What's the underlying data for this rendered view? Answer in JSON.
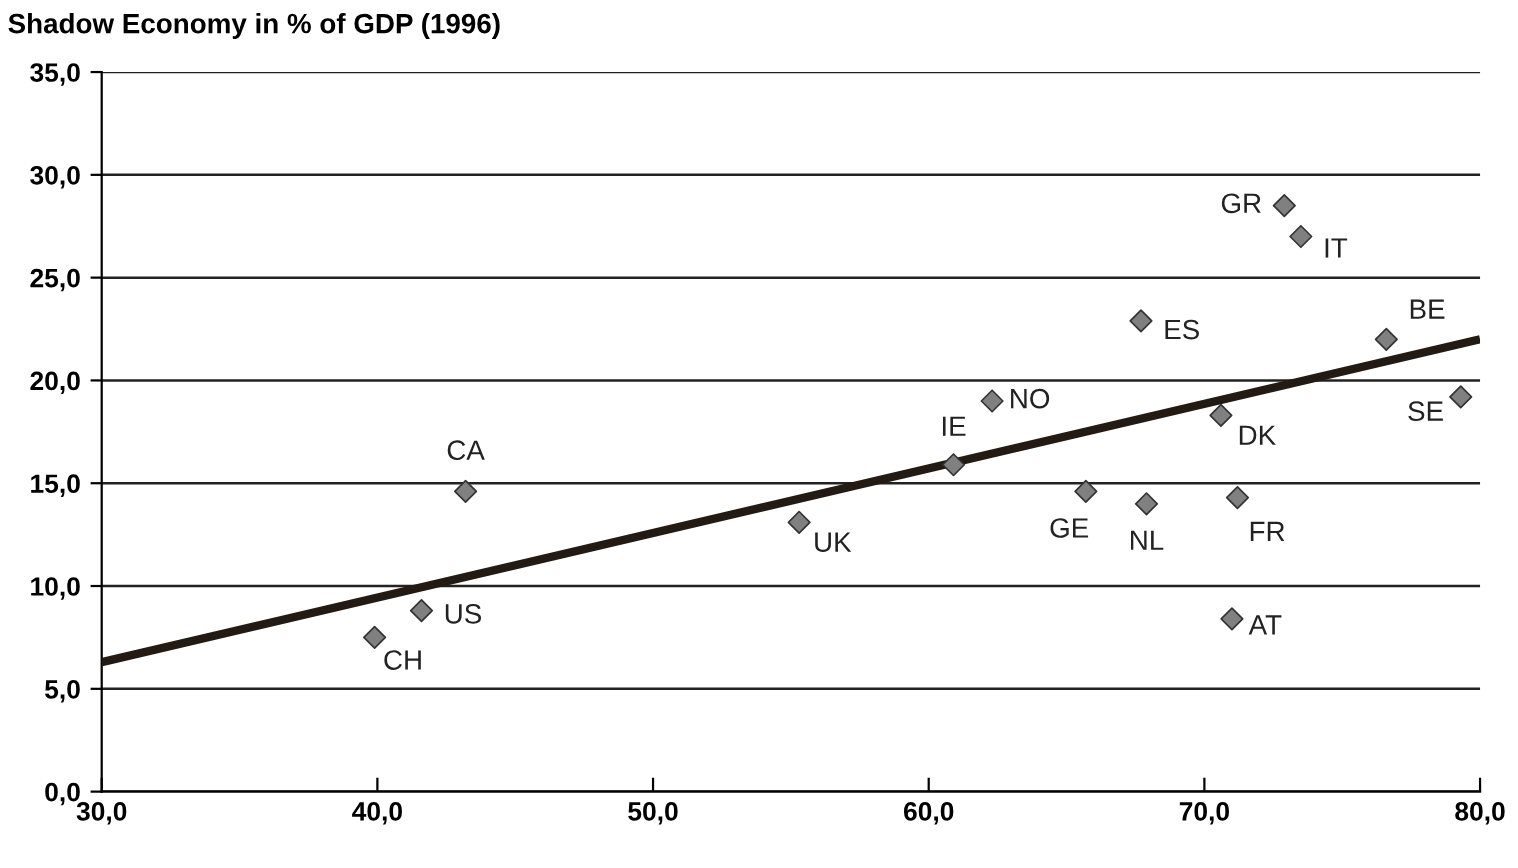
{
  "chart_data": {
    "type": "scatter",
    "title": "Shadow Economy in % of GDP (1996)",
    "series": [
      {
        "color": "#808080",
        "marker": "diamond",
        "x": [
          72.9,
          73.5,
          67.7,
          76.6,
          79.3,
          62.3,
          70.6,
          60.9,
          65.7,
          67.9,
          71.2,
          55.3,
          71.0,
          43.2,
          41.6,
          39.9
        ],
        "values": [
          28.5,
          27.0,
          22.9,
          22.0,
          19.2,
          19.0,
          18.3,
          15.9,
          14.6,
          14.0,
          14.3,
          13.1,
          8.4,
          14.6,
          8.8,
          7.5
        ]
      },
      {
        "type": "line",
        "color": "#231a14",
        "marker": "none",
        "line_style": "solid",
        "x": [
          30,
          80
        ],
        "values": [
          6.3,
          22.0
        ]
      }
    ],
    "annotations": [
      {
        "text": "GR",
        "x": 72.9,
        "y": 28.5
      },
      {
        "text": "IT",
        "x": 73.5,
        "y": 27.0
      },
      {
        "text": "ES",
        "x": 67.7,
        "y": 22.9
      },
      {
        "text": "BE",
        "x": 76.6,
        "y": 22.0
      },
      {
        "text": "SE",
        "x": 79.3,
        "y": 19.2
      },
      {
        "text": "NO",
        "x": 62.3,
        "y": 19.0
      },
      {
        "text": "DK",
        "x": 70.6,
        "y": 18.3
      },
      {
        "text": "IE",
        "x": 60.9,
        "y": 15.9
      },
      {
        "text": "GE",
        "x": 65.7,
        "y": 14.6
      },
      {
        "text": "NL",
        "x": 67.9,
        "y": 14.0
      },
      {
        "text": "FR",
        "x": 71.2,
        "y": 14.3
      },
      {
        "text": "UK",
        "x": 55.3,
        "y": 13.1
      },
      {
        "text": "AT",
        "x": 71.0,
        "y": 8.4
      },
      {
        "text": "CA",
        "x": 43.2,
        "y": 14.6
      },
      {
        "text": "US",
        "x": 41.6,
        "y": 8.8
      },
      {
        "text": "CH",
        "x": 39.9,
        "y": 7.5
      }
    ],
    "xlim": [
      30,
      80
    ],
    "xticks": [
      {
        "value": 30,
        "label": "30,0"
      },
      {
        "value": 40,
        "label": "40,0"
      },
      {
        "value": 50,
        "label": "50,0"
      },
      {
        "value": 60,
        "label": "60,0"
      },
      {
        "value": 70,
        "label": "70,0"
      },
      {
        "value": 80,
        "label": "80,0"
      }
    ],
    "ylim": [
      0,
      35
    ],
    "yticks": [
      {
        "value": 0,
        "label": "0,0"
      },
      {
        "value": 5,
        "label": "5,0"
      },
      {
        "value": 10,
        "label": "10,0"
      },
      {
        "value": 15,
        "label": "15,0"
      },
      {
        "value": 20,
        "label": "20,0"
      },
      {
        "value": 25,
        "label": "25,0"
      },
      {
        "value": 30,
        "label": "30,0"
      },
      {
        "value": 35,
        "label": "35,0"
      }
    ],
    "grid": "y"
  }
}
